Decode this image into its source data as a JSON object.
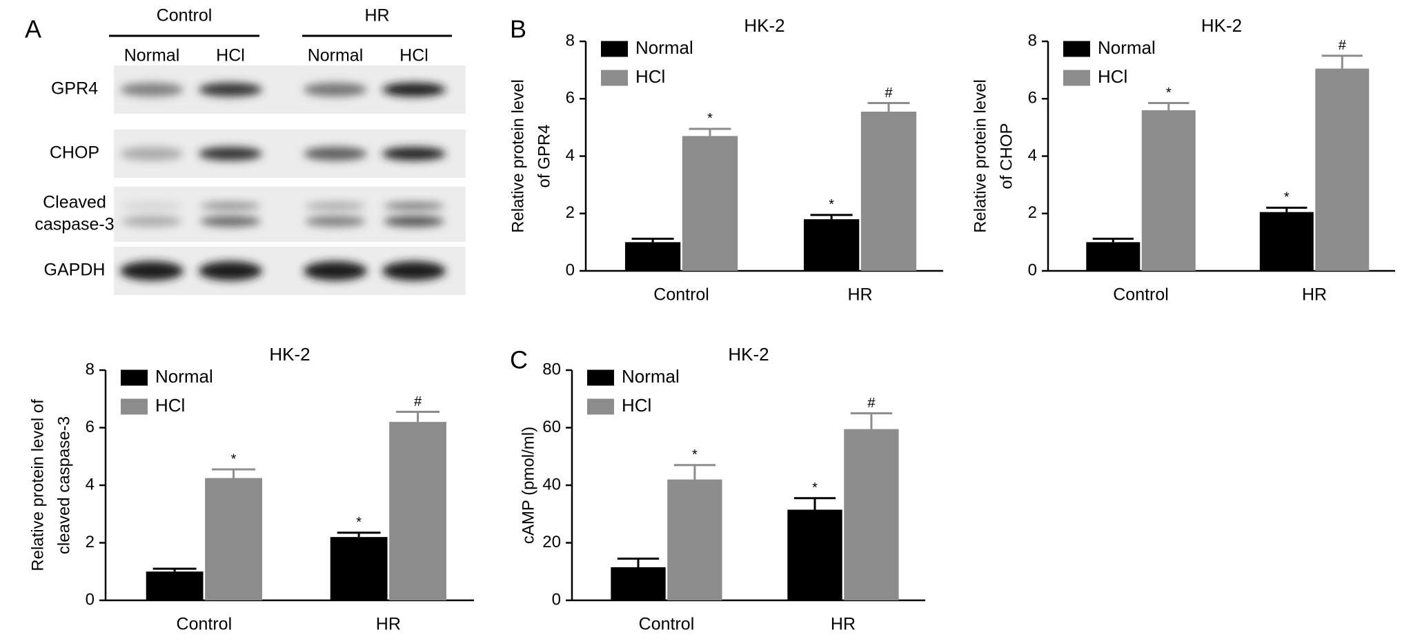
{
  "panel_labels": [
    "A",
    "B",
    "C"
  ],
  "blot": {
    "groups": [
      "Control",
      "HR"
    ],
    "lanes": [
      "Normal",
      "HCl",
      "Normal",
      "HCl"
    ],
    "proteins": [
      [
        "GPR4"
      ],
      [
        "CHOP"
      ],
      [
        "Cleaved",
        "caspase-3"
      ],
      [
        "GAPDH"
      ]
    ]
  },
  "chart_data": [
    {
      "type": "bar",
      "title": "HK-2",
      "ylabel": [
        "Relative protein level",
        "of GPR4"
      ],
      "categories": [
        "Control",
        "HR"
      ],
      "ylim": [
        0,
        8
      ],
      "yticks": [
        0,
        2,
        4,
        6,
        8
      ],
      "series": [
        {
          "name": "Normal",
          "color": "#000000",
          "values": [
            1.0,
            1.8
          ],
          "errors": [
            0.12,
            0.15
          ],
          "markers": [
            null,
            "*"
          ]
        },
        {
          "name": "HCl",
          "color": "#8c8c8c",
          "values": [
            4.7,
            5.55
          ],
          "errors": [
            0.25,
            0.3
          ],
          "markers": [
            "*",
            "#"
          ]
        }
      ]
    },
    {
      "type": "bar",
      "title": "HK-2",
      "ylabel": [
        "Relative protein level",
        "of CHOP"
      ],
      "categories": [
        "Control",
        "HR"
      ],
      "ylim": [
        0,
        8
      ],
      "yticks": [
        0,
        2,
        4,
        6,
        8
      ],
      "series": [
        {
          "name": "Normal",
          "color": "#000000",
          "values": [
            1.0,
            2.05
          ],
          "errors": [
            0.12,
            0.15
          ],
          "markers": [
            null,
            "*"
          ]
        },
        {
          "name": "HCl",
          "color": "#8c8c8c",
          "values": [
            5.6,
            7.05
          ],
          "errors": [
            0.25,
            0.45
          ],
          "markers": [
            "*",
            "#"
          ]
        }
      ]
    },
    {
      "type": "bar",
      "title": "HK-2",
      "ylabel": [
        "Relative protein level of",
        "cleaved caspase-3"
      ],
      "categories": [
        "Control",
        "HR"
      ],
      "ylim": [
        0,
        8
      ],
      "yticks": [
        0,
        2,
        4,
        6,
        8
      ],
      "series": [
        {
          "name": "Normal",
          "color": "#000000",
          "values": [
            1.0,
            2.2
          ],
          "errors": [
            0.1,
            0.15
          ],
          "markers": [
            null,
            "*"
          ]
        },
        {
          "name": "HCl",
          "color": "#8c8c8c",
          "values": [
            4.25,
            6.2
          ],
          "errors": [
            0.3,
            0.35
          ],
          "markers": [
            "*",
            "#"
          ]
        }
      ]
    },
    {
      "type": "bar",
      "title": "HK-2",
      "ylabel": [
        "cAMP (pmol/ml)"
      ],
      "categories": [
        "Control",
        "HR"
      ],
      "ylim": [
        0,
        80
      ],
      "yticks": [
        0,
        20,
        40,
        60,
        80
      ],
      "series": [
        {
          "name": "Normal",
          "color": "#000000",
          "values": [
            11.5,
            31.5
          ],
          "errors": [
            3,
            4
          ],
          "markers": [
            null,
            "*"
          ]
        },
        {
          "name": "HCl",
          "color": "#8c8c8c",
          "values": [
            42,
            59.5
          ],
          "errors": [
            5,
            5.5
          ],
          "markers": [
            "*",
            "#"
          ]
        }
      ]
    }
  ]
}
